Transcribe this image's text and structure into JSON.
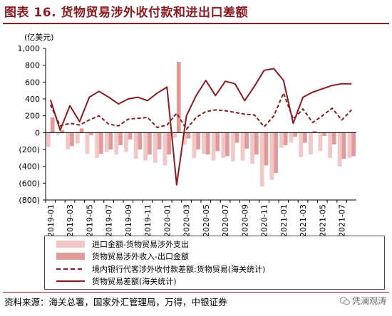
{
  "title": "图表 16. 货物贸易涉外收付款和进出口差额",
  "source": "资料来源：海关总署，国家外汇管理局，万得，中银证券",
  "watermark": "凭澜观涛",
  "colors": {
    "title": "#8a1c1f",
    "bar_import": "#f2c7c7",
    "bar_net": "#e09a9a",
    "line_bank": "#8a1c1f",
    "line_customs": "#8a1c1f"
  },
  "chart_data": {
    "type": "bar",
    "unit_label": "(亿美元)",
    "ylim": [
      -800,
      1000
    ],
    "yticks": [
      -800,
      -600,
      -400,
      -200,
      0,
      200,
      400,
      600,
      800,
      1000
    ],
    "ytick_labels": [
      "(800)",
      "(600)",
      "(400)",
      "(200)",
      "0",
      "200",
      "400",
      "600",
      "800",
      "1,000"
    ],
    "x": [
      "2019-01",
      "2019-02",
      "2019-03",
      "2019-04",
      "2019-05",
      "2019-06",
      "2019-07",
      "2019-08",
      "2019-09",
      "2019-10",
      "2019-11",
      "2019-12",
      "2020-01",
      "2020-02",
      "2020-03",
      "2020-04",
      "2020-05",
      "2020-06",
      "2020-07",
      "2020-08",
      "2020-09",
      "2020-10",
      "2020-11",
      "2020-12",
      "2021-01",
      "2021-02",
      "2021-03",
      "2021-04",
      "2021-05",
      "2021-06",
      "2021-07",
      "2021-08"
    ],
    "xtick_labels": [
      "2019-01",
      "2019-03",
      "2019-05",
      "2019-07",
      "2019-09",
      "2019-11",
      "2020-01",
      "2020-03",
      "2020-05",
      "2020-07",
      "2020-09",
      "2020-11",
      "2021-01",
      "2021-03",
      "2021-05",
      "2021-07"
    ],
    "series": [
      {
        "name": "进口金额-货物贸易涉外支出",
        "kind": "bar",
        "color": "#f2c7c7",
        "values": [
          -170,
          -30,
          -200,
          -130,
          -250,
          -300,
          -230,
          -260,
          -230,
          -310,
          -330,
          -360,
          -390,
          -60,
          -140,
          -300,
          -250,
          -330,
          -300,
          -340,
          -330,
          -370,
          -640,
          -560,
          -180,
          -120,
          -290,
          -260,
          -220,
          -300,
          -400,
          -300
        ]
      },
      {
        "name": "货物贸易涉外收入-出口金额",
        "kind": "bar",
        "color": "#e09a9a",
        "values": [
          180,
          30,
          -160,
          50,
          -30,
          -250,
          -200,
          -150,
          -80,
          -200,
          -260,
          -200,
          -260,
          840,
          -70,
          -200,
          -260,
          -220,
          -280,
          -120,
          -190,
          -260,
          -390,
          -480,
          -150,
          -50,
          -120,
          20,
          -40,
          -140,
          -310,
          -280
        ]
      },
      {
        "name": "境内银行代客涉外收付款差额:货物贸易(海关统计)",
        "kind": "line",
        "style": "dashed",
        "color": "#8a1c1f",
        "values": [
          330,
          80,
          110,
          90,
          150,
          200,
          100,
          80,
          160,
          170,
          180,
          60,
          90,
          230,
          40,
          180,
          250,
          270,
          260,
          240,
          220,
          210,
          70,
          200,
          470,
          160,
          280,
          120,
          200,
          290,
          150,
          270
        ]
      },
      {
        "name": "货物贸易差额(海关统计)",
        "kind": "line",
        "style": "solid",
        "color": "#8a1c1f",
        "values": [
          390,
          30,
          320,
          130,
          420,
          490,
          420,
          340,
          400,
          420,
          380,
          470,
          540,
          -620,
          200,
          440,
          620,
          440,
          610,
          580,
          380,
          550,
          740,
          760,
          620,
          110,
          420,
          480,
          520,
          560,
          580,
          580
        ]
      }
    ],
    "grid": false,
    "legend_position": "bottom"
  }
}
